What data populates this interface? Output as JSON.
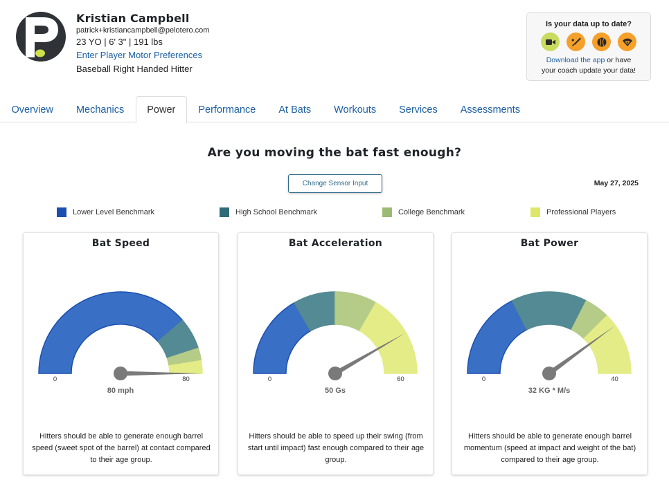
{
  "player": {
    "name": "Kristian Campbell",
    "email": "patrick+kristiancampbell@pelotero.com",
    "stats": "23 YO | 6' 3\" | 191 lbs",
    "motor_link": "Enter Player Motor Preferences",
    "position": "Baseball Right Handed Hitter"
  },
  "update_box": {
    "title": "Is your data up to date?",
    "icons": [
      {
        "name": "video-camera-icon",
        "color": "#c9dc5f"
      },
      {
        "name": "bat-icon",
        "color": "#f5a02a"
      },
      {
        "name": "baseball-icon",
        "color": "#f5a02a"
      },
      {
        "name": "field-sensor-icon",
        "color": "#f5a02a"
      }
    ],
    "download_link": "Download the app",
    "text_after_link": " or have",
    "text_line2": "your coach update your data!"
  },
  "tabs": [
    {
      "label": "Overview",
      "active": false
    },
    {
      "label": "Mechanics",
      "active": false
    },
    {
      "label": "Power",
      "active": true
    },
    {
      "label": "Performance",
      "active": false
    },
    {
      "label": "At Bats",
      "active": false
    },
    {
      "label": "Workouts",
      "active": false
    },
    {
      "label": "Services",
      "active": false
    },
    {
      "label": "Assessments",
      "active": false
    }
  ],
  "main": {
    "question": "Are you moving the bat fast enough?",
    "sensor_button": "Change Sensor Input",
    "date": "May 27, 2025"
  },
  "legend": [
    {
      "label": "Lower Level Benchmark",
      "color": "#1a4fb0"
    },
    {
      "label": "High School Benchmark",
      "color": "#2f6a78"
    },
    {
      "label": "College Benchmark",
      "color": "#9cbb72"
    },
    {
      "label": "Professional Players",
      "color": "#dde86a"
    }
  ],
  "gauges": [
    {
      "title": "Bat Speed",
      "min": 0,
      "max": 80,
      "min_label": "0",
      "max_label": "80",
      "value": 80,
      "value_label": "80 mph",
      "bands": [
        {
          "from": 0,
          "to": 62,
          "color": "#3a6fc6"
        },
        {
          "from": 62,
          "to": 72,
          "color": "#538a94"
        },
        {
          "from": 72,
          "to": 76,
          "color": "#b5cb88"
        },
        {
          "from": 76,
          "to": 80,
          "color": "#e3ec87"
        }
      ],
      "description": "Hitters should be able to generate enough barrel speed (sweet spot of the barrel) at contact compared to their age group."
    },
    {
      "title": "Bat Acceleration",
      "min": 0,
      "max": 60,
      "min_label": "0",
      "max_label": "60",
      "value": 50,
      "value_label": "50 Gs",
      "bands": [
        {
          "from": 0,
          "to": 20,
          "color": "#3a6fc6"
        },
        {
          "from": 20,
          "to": 30,
          "color": "#538a94"
        },
        {
          "from": 30,
          "to": 40,
          "color": "#b5cb88"
        },
        {
          "from": 40,
          "to": 60,
          "color": "#e3ec87"
        }
      ],
      "description": "Hitters should be able to speed up their swing (from start until impact) fast enough compared to their age group."
    },
    {
      "title": "Bat Power",
      "min": 0,
      "max": 40,
      "min_label": "0",
      "max_label": "40",
      "value": 32,
      "value_label": "32 KG * M/s",
      "bands": [
        {
          "from": 0,
          "to": 14,
          "color": "#3a6fc6"
        },
        {
          "from": 14,
          "to": 26,
          "color": "#538a94"
        },
        {
          "from": 26,
          "to": 30,
          "color": "#b5cb88"
        },
        {
          "from": 30,
          "to": 40,
          "color": "#e3ec87"
        }
      ],
      "description": "Hitters should be able to generate enough barrel momentum (speed at impact and weight of the bat) compared to their age group."
    }
  ]
}
